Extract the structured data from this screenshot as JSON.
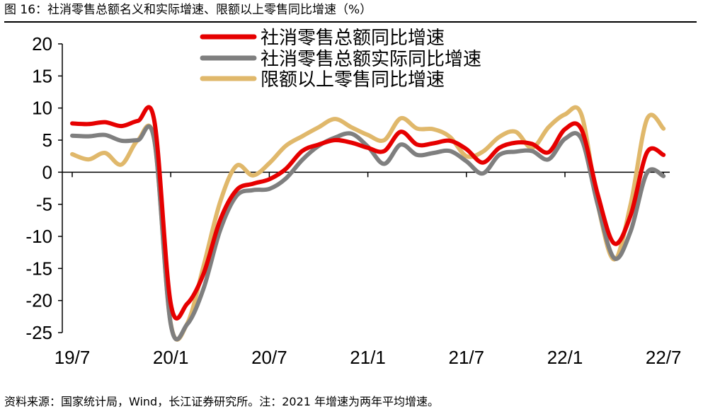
{
  "title": "图 16：社消零售总额名义和实际增速、限额以上零售同比增速（%）",
  "source": "资料来源：国家统计局，Wind，长江证券研究所。注：2021 年增速为两年平均增速。",
  "chart_data": {
    "type": "line",
    "x": [
      "2019-07",
      "2019-08",
      "2019-09",
      "2019-10",
      "2019-11",
      "2019-12",
      "2020-01",
      "2020-02",
      "2020-03",
      "2020-04",
      "2020-05",
      "2020-06",
      "2020-07",
      "2020-08",
      "2020-09",
      "2020-10",
      "2020-11",
      "2020-12",
      "2021-01",
      "2021-02",
      "2021-03",
      "2021-04",
      "2021-05",
      "2021-06",
      "2021-07",
      "2021-08",
      "2021-09",
      "2021-10",
      "2021-11",
      "2021-12",
      "2022-01",
      "2022-02",
      "2022-03",
      "2022-04",
      "2022-05",
      "2022-06",
      "2022-07"
    ],
    "xticks": [
      "19/7",
      "20/1",
      "20/7",
      "21/1",
      "21/7",
      "22/1",
      "22/7"
    ],
    "ylim": [
      -25,
      20
    ],
    "yticks": [
      20,
      15,
      10,
      5,
      0,
      -5,
      -10,
      -15,
      -20,
      -25
    ],
    "legend_position": "top-center",
    "series": [
      {
        "name": "社消零售总额同比增速",
        "color": "#e60000",
        "values": [
          7.6,
          7.5,
          7.8,
          7.2,
          8.0,
          8.0,
          -20.5,
          -20.5,
          -15.8,
          -7.5,
          -2.8,
          -1.8,
          -1.1,
          0.5,
          3.3,
          4.3,
          5.0,
          4.6,
          3.8,
          3.3,
          6.3,
          4.3,
          4.5,
          4.9,
          3.6,
          1.5,
          3.8,
          4.6,
          4.4,
          3.1,
          6.7,
          6.7,
          -3.5,
          -11.1,
          -6.7,
          3.1,
          2.7
        ]
      },
      {
        "name": "社消零售总额实际同比增速",
        "color": "#7f7f7f",
        "values": [
          5.7,
          5.6,
          5.8,
          4.9,
          5.0,
          5.0,
          -23.7,
          -23.7,
          -18.1,
          -9.1,
          -3.7,
          -2.8,
          -2.6,
          -1.0,
          1.9,
          4.1,
          5.4,
          6.0,
          4.0,
          1.3,
          4.3,
          2.7,
          3.0,
          3.3,
          1.7,
          -0.2,
          2.7,
          3.2,
          3.3,
          2.0,
          5.2,
          5.2,
          -5.1,
          -13.4,
          -9.2,
          -0.1,
          -0.6
        ]
      },
      {
        "name": "限额以上零售同比增速",
        "color": "#e0b86b",
        "values": [
          2.8,
          2.0,
          3.0,
          1.2,
          5.0,
          5.0,
          -23.6,
          -23.6,
          -14.6,
          -4.7,
          1.0,
          -0.5,
          1.4,
          4.1,
          5.6,
          7.0,
          8.3,
          7.0,
          5.8,
          5.0,
          8.4,
          6.8,
          6.7,
          5.5,
          2.5,
          3.2,
          5.5,
          6.3,
          3.8,
          7.0,
          9.0,
          9.0,
          -5.0,
          -13.6,
          -5.0,
          8.3,
          6.8
        ]
      }
    ]
  }
}
